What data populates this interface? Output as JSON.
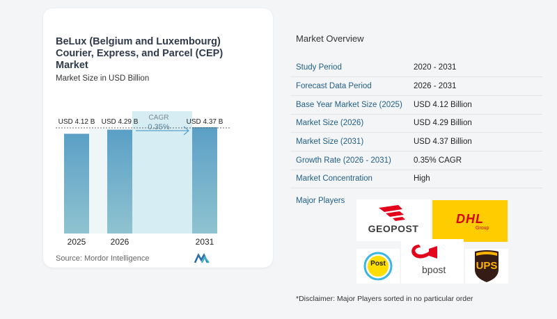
{
  "chart_data": {
    "type": "bar",
    "title": "BeLux (Belgium and Luxembourg) Courier, Express, and Parcel (CEP) Market",
    "subtitle": "Market Size in USD Billion",
    "categories": [
      "2025",
      "2026",
      "2031"
    ],
    "values": [
      4.12,
      4.29,
      4.37
    ],
    "value_labels": [
      "USD 4.12 B",
      "USD 4.29 B",
      "USD 4.37 B"
    ],
    "annotation": {
      "label": "CAGR",
      "value": "0.35%",
      "from": "2026",
      "to": "2031"
    },
    "colors": {
      "bar": "#5b9fc6",
      "bar_light": "#8fc3d0",
      "band": "#d6eef3"
    },
    "source": "Source:  Mordor Intelligence"
  },
  "overview": {
    "title": "Market Overview",
    "rows": [
      {
        "label": "Study Period",
        "value": "2020 - 2031"
      },
      {
        "label": "Forecast Data Period",
        "value": "2026 - 2031"
      },
      {
        "label": "Base Year Market Size (2025)",
        "value": "USD 4.12 Billion"
      },
      {
        "label": "Market Size (2026)",
        "value": "USD 4.29 Billion"
      },
      {
        "label": "Market Size (2031)",
        "value": "USD 4.37 Billion"
      },
      {
        "label": "Growth Rate (2026 - 2031)",
        "value": "0.35% CAGR"
      },
      {
        "label": "Market Concentration",
        "value": "High"
      }
    ],
    "players_title": "Major Players",
    "players": [
      {
        "logo": "GEOPOST",
        "color": "#e2001a"
      },
      {
        "logo": "DHL",
        "sub": "Group",
        "color": "#d40511",
        "bg": "#ffcc00"
      },
      {
        "logo": "Post",
        "color": "#1a1a1a"
      },
      {
        "logo": "bpost",
        "color": "#e3051b"
      },
      {
        "logo": "UPS",
        "color": "#351c15",
        "accent": "#ffb500"
      }
    ],
    "disclaimer": "*Disclaimer: Major Players sorted in no particular order"
  }
}
